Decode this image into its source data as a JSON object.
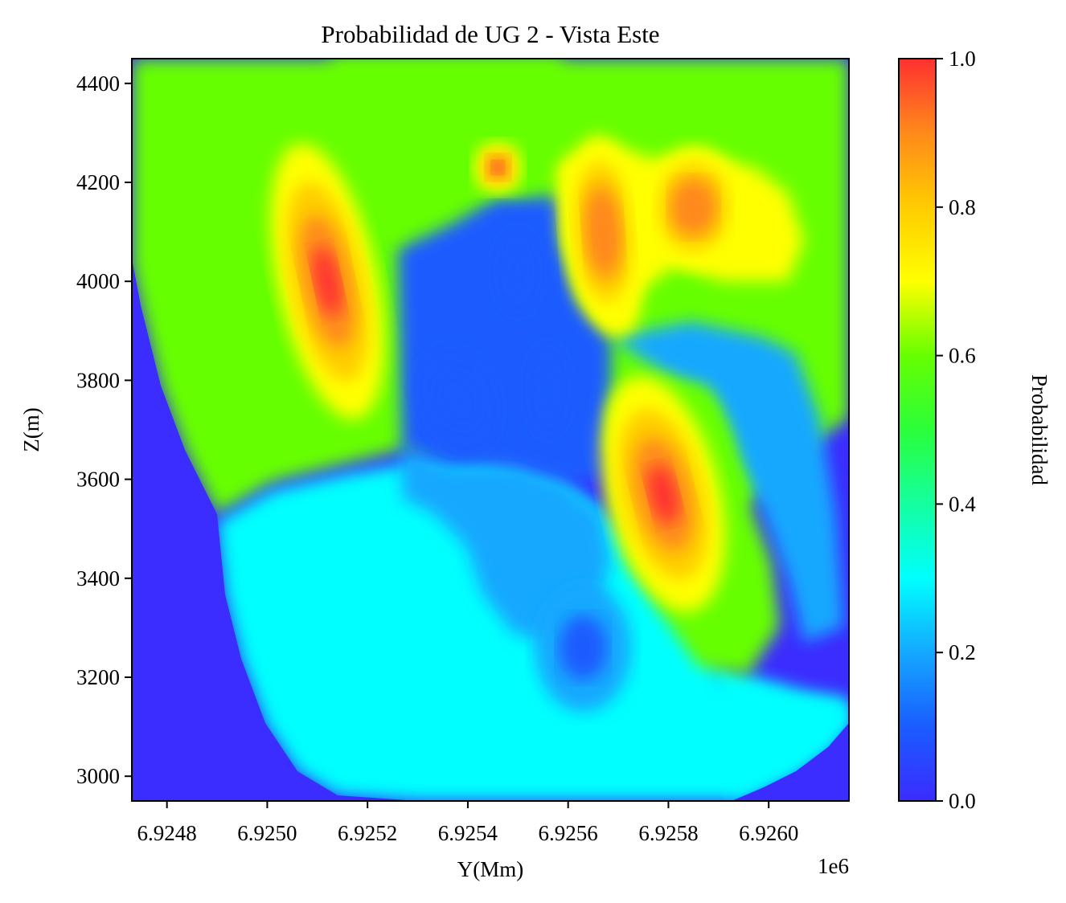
{
  "chart_data": {
    "type": "heatmap",
    "title": "Probabilidad de UG 2 - Vista Este",
    "xlabel": "Y(Mm)",
    "ylabel": "Z(m)",
    "x_offset_label": "1e6",
    "xlim": [
      6.92473,
      6.92616
    ],
    "ylim": [
      2950,
      4450
    ],
    "x_ticks": [
      6.9248,
      6.925,
      6.9252,
      6.9254,
      6.9256,
      6.9258,
      6.926
    ],
    "x_tick_labels": [
      "6.9248",
      "6.9250",
      "6.9252",
      "6.9254",
      "6.9256",
      "6.9258",
      "6.9260"
    ],
    "y_ticks": [
      3000,
      3200,
      3400,
      3600,
      3800,
      4000,
      4200,
      4400
    ],
    "y_tick_labels": [
      "3000",
      "3200",
      "3400",
      "3600",
      "3800",
      "4000",
      "4200",
      "4400"
    ],
    "colorbar": {
      "label": "Probabilidad",
      "range": [
        0.0,
        1.0
      ],
      "ticks": [
        0.0,
        0.2,
        0.4,
        0.6,
        0.8,
        1.0
      ],
      "tick_labels": [
        "0.0",
        "0.2",
        "0.4",
        "0.6",
        "0.8",
        "1.0"
      ],
      "colormap": "gist_rainbow_r",
      "stops": [
        {
          "v": 0.0,
          "color": "#3b2cff"
        },
        {
          "v": 0.1,
          "color": "#1a5cff"
        },
        {
          "v": 0.2,
          "color": "#14a8ff"
        },
        {
          "v": 0.3,
          "color": "#00ffff"
        },
        {
          "v": 0.4,
          "color": "#14ffa0"
        },
        {
          "v": 0.5,
          "color": "#2aff3a"
        },
        {
          "v": 0.6,
          "color": "#66ff00"
        },
        {
          "v": 0.7,
          "color": "#ffff00"
        },
        {
          "v": 0.8,
          "color": "#ffcc00"
        },
        {
          "v": 0.9,
          "color": "#ff8a1a"
        },
        {
          "v": 1.0,
          "color": "#ff3030"
        }
      ]
    },
    "background_value": 0.0,
    "hotspots": [
      {
        "y": 6.92512,
        "z": 4000,
        "value": 0.97
      },
      {
        "y": 6.92546,
        "z": 4230,
        "value": 0.97
      },
      {
        "y": 6.92567,
        "z": 4100,
        "value": 0.93
      },
      {
        "y": 6.92585,
        "z": 4150,
        "value": 0.87
      },
      {
        "y": 6.92579,
        "z": 3570,
        "value": 0.97
      }
    ],
    "lows": [
      {
        "y": 6.92538,
        "z": 3760,
        "value": 0.05
      },
      {
        "y": 6.92556,
        "z": 3780,
        "value": 0.07
      },
      {
        "y": 6.9255,
        "z": 4020,
        "value": 0.07
      },
      {
        "y": 6.92563,
        "z": 3260,
        "value": 0.12
      }
    ]
  }
}
